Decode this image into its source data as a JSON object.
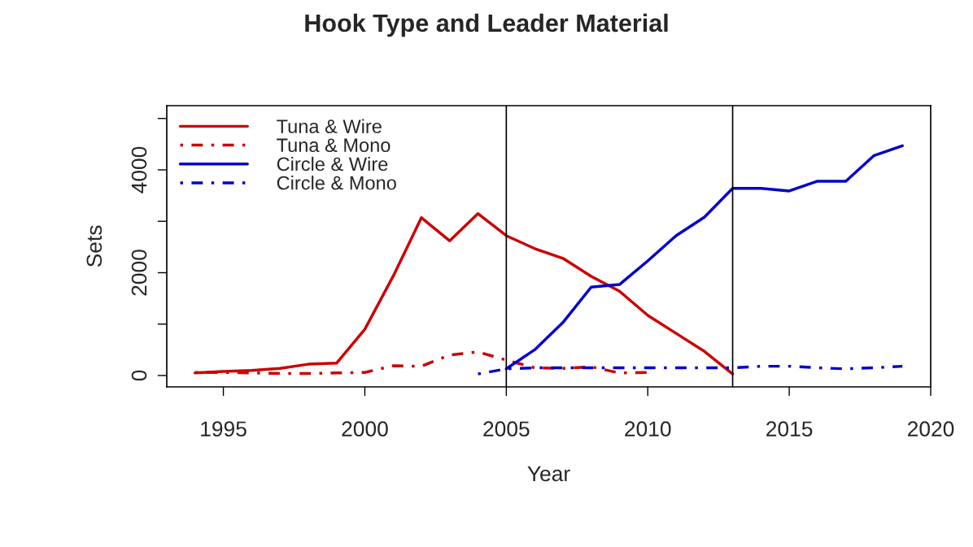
{
  "chart_data": {
    "type": "line",
    "title": "Hook Type and Leader Material",
    "xlabel": "Year",
    "ylabel": "Sets",
    "xlim": [
      1993,
      2020
    ],
    "xticks": [
      1995,
      2000,
      2005,
      2010,
      2015,
      2020
    ],
    "ylim": [
      -221,
      5249
    ],
    "yticks": [
      0,
      {
        "value": 1000,
        "label": null
      },
      2000,
      {
        "value": 3000,
        "label": null
      },
      4000,
      {
        "value": 5000,
        "label": null
      }
    ],
    "grid": false,
    "legend": "top left",
    "marker": "none",
    "ref_lines": [
      {
        "axis": "x",
        "value": 2005,
        "color": "#000000"
      },
      {
        "axis": "x",
        "value": 2013,
        "color": "#000000"
      }
    ],
    "series": [
      {
        "name": "Tuna & Wire",
        "color": "#cc0000",
        "line_style": "solid",
        "x": [
          1994,
          1995,
          1996,
          1997,
          1998,
          1999,
          2000,
          2001,
          2002,
          2003,
          2004,
          2005,
          2006,
          2007,
          2008,
          2009,
          2010,
          2011,
          2012,
          2013
        ],
        "values": [
          50,
          80,
          100,
          140,
          220,
          240,
          900,
          1930,
          3070,
          2620,
          3150,
          2720,
          2470,
          2280,
          1930,
          1640,
          1170,
          820,
          470,
          30
        ]
      },
      {
        "name": "Tuna & Mono",
        "color": "#cc0000",
        "line_style": "dashdot",
        "x": [
          1994,
          1995,
          1996,
          1997,
          1998,
          1999,
          2000,
          2001,
          2002,
          2003,
          2004,
          2005,
          2006,
          2007,
          2008,
          2009,
          2010
        ],
        "values": [
          60,
          60,
          50,
          40,
          40,
          50,
          60,
          190,
          180,
          400,
          460,
          300,
          150,
          140,
          170,
          50,
          60
        ]
      },
      {
        "name": "Circle & Wire",
        "color": "#0000cc",
        "line_style": "solid",
        "x": [
          2005,
          2006,
          2007,
          2008,
          2009,
          2010,
          2011,
          2012,
          2013,
          2014,
          2015,
          2016,
          2017,
          2018,
          2019
        ],
        "values": [
          130,
          500,
          1030,
          1720,
          1770,
          2230,
          2720,
          3080,
          3640,
          3640,
          3590,
          3780,
          3780,
          4280,
          4470
        ]
      },
      {
        "name": "Circle & Mono",
        "color": "#0000cc",
        "line_style": "dashdot",
        "x": [
          2004,
          2005,
          2006,
          2007,
          2008,
          2009,
          2010,
          2011,
          2012,
          2013,
          2014,
          2015,
          2016,
          2017,
          2018,
          2019
        ],
        "values": [
          30,
          130,
          150,
          150,
          150,
          150,
          150,
          150,
          150,
          150,
          180,
          180,
          150,
          130,
          150,
          180
        ]
      }
    ]
  }
}
